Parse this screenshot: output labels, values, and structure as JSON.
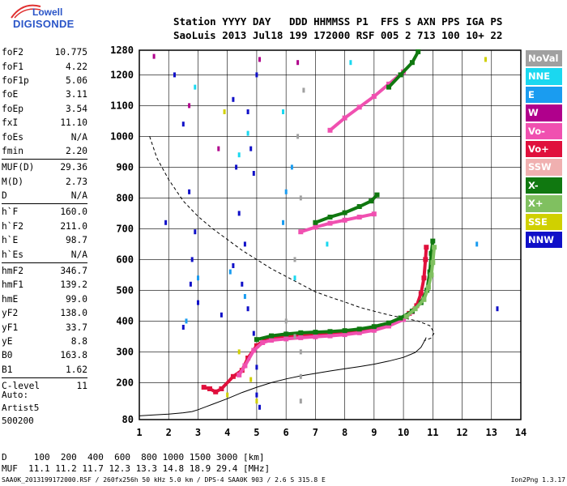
{
  "logo": {
    "line1": "Lowell",
    "line2": "DIGISONDE"
  },
  "header": {
    "line1": "Station YYYY DAY   DDD HHMMSS P1  FFS S AXN PPS IGA PS",
    "line2": "SaoLuis 2013 Jul18 199 172000 RSF 005 2 713 100 10+ 22"
  },
  "params": [
    [
      [
        "foF2",
        "10.775"
      ],
      [
        "foF1",
        "4.22"
      ],
      [
        "foF1p",
        "5.06"
      ],
      [
        "foE",
        "3.11"
      ],
      [
        "foEp",
        "3.54"
      ],
      [
        "fxI",
        "11.10"
      ],
      [
        "foEs",
        "N/A"
      ],
      [
        "fmin",
        "2.20"
      ]
    ],
    [
      [
        "MUF(D)",
        "29.36"
      ],
      [
        "M(D)",
        "2.73"
      ],
      [
        "D",
        "N/A"
      ]
    ],
    [
      [
        "h`F",
        "160.0"
      ],
      [
        "h`F2",
        "211.0"
      ],
      [
        "h`E",
        "98.7"
      ],
      [
        "h`Es",
        "N/A"
      ]
    ],
    [
      [
        "hmF2",
        "346.7"
      ],
      [
        "hmF1",
        "139.2"
      ],
      [
        "hmE",
        "99.0"
      ],
      [
        "yF2",
        "138.0"
      ],
      [
        "yF1",
        "33.7"
      ],
      [
        "yE",
        "8.8"
      ],
      [
        "B0",
        "163.8"
      ],
      [
        "B1",
        "1.62"
      ]
    ],
    [
      [
        "C-level",
        "11"
      ]
    ]
  ],
  "auto": {
    "line1": "Auto:",
    "line2": "Artist5",
    "line3": "500200"
  },
  "bottom": {
    "d_line": "D     100  200  400  600  800 1000 1500 3000 [km]",
    "muf_line": "MUF  11.1 11.2 11.7 12.3 13.3 14.8 18.9 29.4 [MHz]"
  },
  "footer": {
    "left": "SAA0K_2013199172000.RSF / 260fx256h 50 kHz 5.0 km / DPS-4 SAA0K 903 / 2.6 S 315.8 E",
    "right": "Ion2Png 1.3.17"
  },
  "legend": [
    {
      "label": "NoVal",
      "color": "#a0a0a0"
    },
    {
      "label": "NNE",
      "color": "#1ad8f0"
    },
    {
      "label": "E",
      "color": "#1a9cf0"
    },
    {
      "label": "W",
      "color": "#b0008c"
    },
    {
      "label": "Vo-",
      "color": "#f050b0"
    },
    {
      "label": "Vo+",
      "color": "#e0103c"
    },
    {
      "label": "SSW",
      "color": "#f0b0b0"
    },
    {
      "label": "X-",
      "color": "#107810"
    },
    {
      "label": "X+",
      "color": "#80c060"
    },
    {
      "label": "SSE",
      "color": "#d0d000"
    },
    {
      "label": "NNW",
      "color": "#1010c8"
    }
  ],
  "chart_data": {
    "type": "scatter",
    "xlim": [
      1,
      14
    ],
    "ylim": [
      80,
      1280
    ],
    "x_ticks": [
      1,
      2,
      3,
      4,
      5,
      6,
      7,
      8,
      9,
      10,
      11,
      12,
      13,
      14
    ],
    "y_ticks": [
      80,
      200,
      300,
      400,
      500,
      600,
      700,
      800,
      900,
      1000,
      1100,
      1200,
      1280
    ],
    "grid": true,
    "series": [
      {
        "name": "Vo+",
        "color": "#e0103c",
        "points": [
          [
            3.2,
            185
          ],
          [
            3.4,
            180
          ],
          [
            3.6,
            170
          ],
          [
            3.8,
            180
          ],
          [
            4.2,
            220
          ],
          [
            4.5,
            240
          ],
          [
            4.7,
            280
          ],
          [
            5.0,
            320
          ],
          [
            5.3,
            340
          ],
          [
            5.6,
            345
          ],
          [
            6.0,
            350
          ],
          [
            6.5,
            352
          ],
          [
            7.0,
            355
          ],
          [
            7.5,
            358
          ],
          [
            8.0,
            362
          ],
          [
            8.5,
            368
          ],
          [
            9.0,
            378
          ],
          [
            9.5,
            392
          ],
          [
            9.9,
            408
          ],
          [
            10.2,
            425
          ],
          [
            10.45,
            450
          ],
          [
            10.6,
            490
          ],
          [
            10.7,
            540
          ],
          [
            10.75,
            600
          ],
          [
            10.78,
            640
          ]
        ]
      },
      {
        "name": "Vo-",
        "color": "#f050b0",
        "points": [
          [
            4.4,
            225
          ],
          [
            4.6,
            255
          ],
          [
            4.9,
            305
          ],
          [
            5.2,
            330
          ],
          [
            5.5,
            338
          ],
          [
            6.0,
            342
          ],
          [
            6.5,
            346
          ],
          [
            7.0,
            349
          ],
          [
            7.5,
            352
          ],
          [
            8.0,
            356
          ],
          [
            8.5,
            362
          ],
          [
            9.0,
            370
          ],
          [
            9.5,
            384
          ],
          [
            10.0,
            405
          ],
          [
            10.3,
            430
          ],
          [
            6.5,
            690
          ],
          [
            7.0,
            705
          ],
          [
            7.5,
            718
          ],
          [
            8.0,
            728
          ],
          [
            8.5,
            738
          ],
          [
            9.0,
            748
          ],
          [
            7.5,
            1020
          ],
          [
            8.0,
            1060
          ],
          [
            8.5,
            1095
          ],
          [
            9.0,
            1130
          ],
          [
            9.5,
            1170
          ],
          [
            10.0,
            1210
          ]
        ]
      },
      {
        "name": "X-",
        "color": "#107810",
        "points": [
          [
            5.0,
            340
          ],
          [
            5.5,
            352
          ],
          [
            6.0,
            358
          ],
          [
            6.5,
            362
          ],
          [
            7.0,
            364
          ],
          [
            7.5,
            366
          ],
          [
            8.0,
            369
          ],
          [
            8.5,
            374
          ],
          [
            9.0,
            382
          ],
          [
            9.5,
            394
          ],
          [
            9.9,
            410
          ],
          [
            10.3,
            432
          ],
          [
            10.6,
            460
          ],
          [
            10.8,
            500
          ],
          [
            10.9,
            560
          ],
          [
            10.95,
            620
          ],
          [
            11.0,
            660
          ],
          [
            7.0,
            720
          ],
          [
            7.5,
            738
          ],
          [
            8.0,
            752
          ],
          [
            8.5,
            772
          ],
          [
            8.9,
            790
          ],
          [
            9.1,
            810
          ],
          [
            9.5,
            1160
          ],
          [
            9.9,
            1200
          ],
          [
            10.3,
            1240
          ],
          [
            10.5,
            1275
          ]
        ]
      },
      {
        "name": "X+",
        "color": "#80c060",
        "points": [
          [
            10.1,
            415
          ],
          [
            10.4,
            440
          ],
          [
            10.7,
            470
          ],
          [
            10.85,
            510
          ],
          [
            10.95,
            550
          ],
          [
            11.0,
            590
          ],
          [
            11.05,
            640
          ]
        ]
      },
      {
        "name": "E",
        "color": "#1a9cf0",
        "points": [
          [
            2.6,
            400
          ],
          [
            3.0,
            540
          ],
          [
            4.1,
            560
          ],
          [
            4.6,
            480
          ],
          [
            5.9,
            720
          ],
          [
            6.0,
            820
          ],
          [
            6.2,
            900
          ],
          [
            12.5,
            650
          ]
        ]
      },
      {
        "name": "NNE",
        "color": "#1ad8f0",
        "points": [
          [
            2.9,
            1160
          ],
          [
            4.4,
            940
          ],
          [
            4.7,
            1010
          ],
          [
            5.9,
            1080
          ],
          [
            6.3,
            540
          ],
          [
            7.4,
            650
          ],
          [
            8.2,
            1240
          ]
        ]
      },
      {
        "name": "W",
        "color": "#b0008c",
        "points": [
          [
            1.5,
            1260
          ],
          [
            2.7,
            1100
          ],
          [
            3.7,
            960
          ],
          [
            5.1,
            1250
          ],
          [
            6.4,
            1240
          ]
        ]
      },
      {
        "name": "NNW",
        "color": "#1010c8",
        "points": [
          [
            2.2,
            1200
          ],
          [
            2.5,
            1040
          ],
          [
            2.7,
            820
          ],
          [
            2.9,
            690
          ],
          [
            2.8,
            600
          ],
          [
            2.75,
            520
          ],
          [
            3.0,
            460
          ],
          [
            4.2,
            1120
          ],
          [
            4.3,
            900
          ],
          [
            4.4,
            750
          ],
          [
            4.6,
            650
          ],
          [
            4.5,
            520
          ],
          [
            4.7,
            440
          ],
          [
            4.9,
            360
          ],
          [
            5.0,
            250
          ],
          [
            5.0,
            160
          ],
          [
            5.1,
            120
          ],
          [
            4.7,
            1080
          ],
          [
            4.8,
            960
          ],
          [
            4.9,
            880
          ],
          [
            5.0,
            1200
          ],
          [
            4.2,
            580
          ],
          [
            3.8,
            420
          ],
          [
            2.5,
            380
          ],
          [
            1.9,
            720
          ],
          [
            13.2,
            440
          ]
        ]
      },
      {
        "name": "SSE",
        "color": "#d0d000",
        "points": [
          [
            4.0,
            160
          ],
          [
            4.4,
            300
          ],
          [
            4.8,
            210
          ],
          [
            5.0,
            140
          ],
          [
            3.9,
            1080
          ],
          [
            12.8,
            1250
          ]
        ]
      },
      {
        "name": "NoVal",
        "color": "#a0a0a0",
        "points": [
          [
            6.0,
            400
          ],
          [
            6.3,
            350
          ],
          [
            6.5,
            300
          ],
          [
            6.5,
            220
          ],
          [
            6.5,
            140
          ],
          [
            6.3,
            600
          ],
          [
            6.5,
            800
          ],
          [
            6.4,
            1000
          ],
          [
            6.6,
            1150
          ]
        ]
      }
    ],
    "profile": [
      [
        1.0,
        92
      ],
      [
        1.5,
        95
      ],
      [
        2.0,
        98
      ],
      [
        2.5,
        102
      ],
      [
        2.8,
        106
      ],
      [
        3.0,
        112
      ],
      [
        3.5,
        130
      ],
      [
        4.0,
        148
      ],
      [
        4.5,
        168
      ],
      [
        5.0,
        185
      ],
      [
        5.5,
        200
      ],
      [
        6.0,
        212
      ],
      [
        6.5,
        222
      ],
      [
        7.0,
        230
      ],
      [
        7.5,
        238
      ],
      [
        8.0,
        245
      ],
      [
        8.5,
        252
      ],
      [
        9.0,
        260
      ],
      [
        9.5,
        270
      ],
      [
        10.0,
        282
      ],
      [
        10.4,
        298
      ],
      [
        10.6,
        315
      ],
      [
        10.7,
        332
      ],
      [
        10.775,
        346.7
      ]
    ],
    "muf_curve": [
      [
        1.35,
        1000
      ],
      [
        1.6,
        930
      ],
      [
        2.0,
        860
      ],
      [
        2.5,
        790
      ],
      [
        3.0,
        740
      ],
      [
        3.5,
        700
      ],
      [
        4.0,
        665
      ],
      [
        4.5,
        630
      ],
      [
        5.0,
        600
      ],
      [
        5.5,
        570
      ],
      [
        6.0,
        545
      ],
      [
        6.5,
        520
      ],
      [
        7.0,
        495
      ],
      [
        7.5,
        478
      ],
      [
        8.0,
        462
      ],
      [
        8.5,
        445
      ],
      [
        9.0,
        432
      ],
      [
        9.5,
        420
      ],
      [
        10.0,
        410
      ],
      [
        10.5,
        400
      ],
      [
        10.9,
        385
      ],
      [
        11.05,
        362
      ],
      [
        10.95,
        345
      ],
      [
        10.7,
        336
      ]
    ]
  }
}
